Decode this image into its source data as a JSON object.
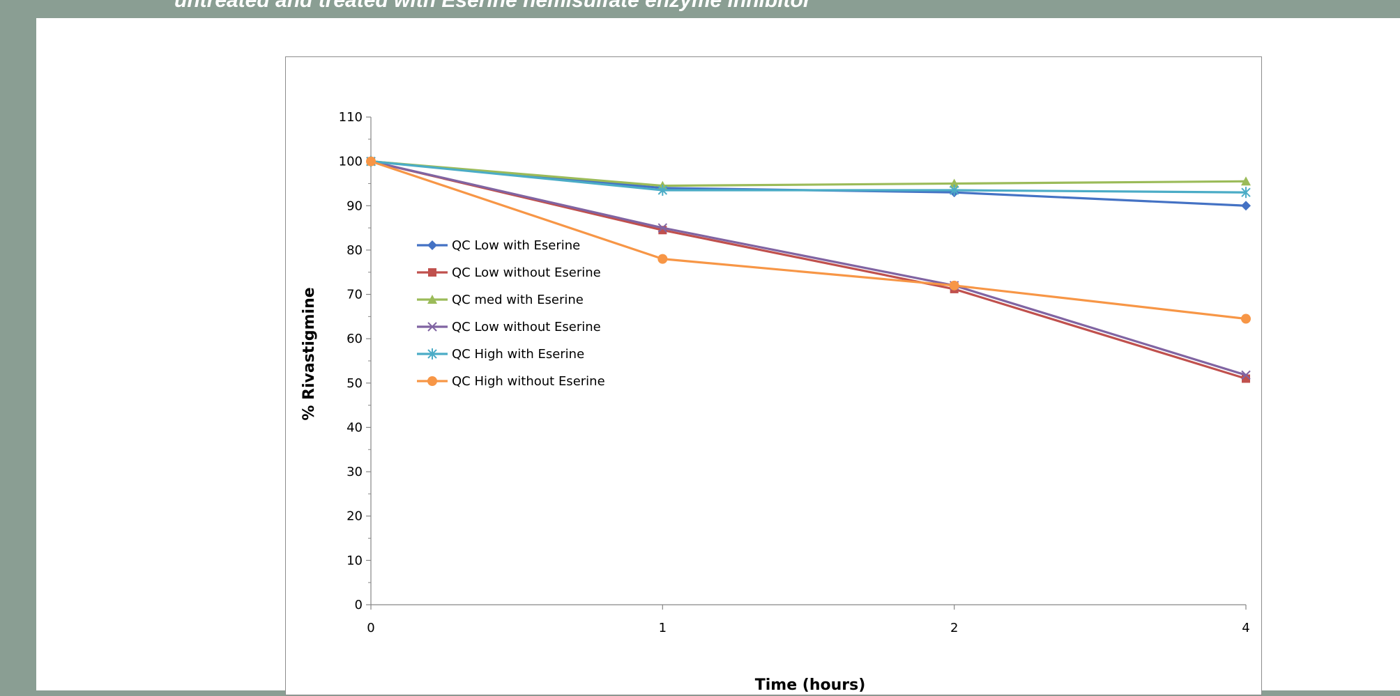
{
  "header": {
    "caption": "untreated and treated with Eserine hemisulfate enzyme inhibitor"
  },
  "colors": {
    "background": "#8a9e93",
    "panel": "#ffffff"
  },
  "chart_data": {
    "type": "line",
    "title": "",
    "xlabel": "Time (hours)",
    "ylabel": "% Rivastigmine",
    "categories": [
      "0",
      "1",
      "2",
      "4"
    ],
    "ylim": [
      0,
      110
    ],
    "yticks": [
      0,
      10,
      20,
      30,
      40,
      50,
      60,
      70,
      80,
      90,
      100,
      110
    ],
    "grid": false,
    "legend_position": "left-center",
    "series": [
      {
        "name": "QC Low with Eserine",
        "values": [
          100,
          94,
          93,
          90
        ],
        "color": "#4472c4",
        "marker": "diamond"
      },
      {
        "name": "QC Low without Eserine",
        "values": [
          100,
          84.5,
          71.2,
          51
        ],
        "color": "#c0504d",
        "marker": "square"
      },
      {
        "name": "QC med with Eserine",
        "values": [
          100,
          94.5,
          95,
          95.5
        ],
        "color": "#9bbb59",
        "marker": "triangle"
      },
      {
        "name": "QC Low without Eserine",
        "values": [
          100,
          85,
          72,
          51.8
        ],
        "color": "#8064a2",
        "marker": "x"
      },
      {
        "name": "QC High with Eserine",
        "values": [
          100,
          93.5,
          93.5,
          93
        ],
        "color": "#4bacc6",
        "marker": "star"
      },
      {
        "name": "QC High without Eserine",
        "values": [
          100,
          78,
          72,
          64.5
        ],
        "color": "#f79646",
        "marker": "circle"
      }
    ]
  }
}
